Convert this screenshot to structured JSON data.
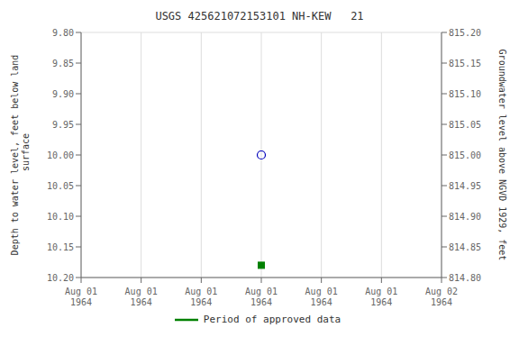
{
  "chart_data": {
    "type": "scatter",
    "title": "USGS 425621072153101 NH-KEW   21",
    "ylabel": "Depth to water level, feet below land\n surface",
    "y2label": "Groundwater level above NGVD 1929, feet",
    "categories": [
      "Aug 01\n1964",
      "Aug 01\n1964",
      "Aug 01\n1964",
      "Aug 01\n1964",
      "Aug 01\n1964",
      "Aug 01\n1964",
      "Aug 02\n1964"
    ],
    "series": [
      {
        "color": "#0000bb",
        "marker": "open_circle",
        "values": [
          null,
          null,
          null,
          10.0,
          null,
          null,
          null
        ]
      },
      {
        "name": "Period of approved data",
        "color": "#008000",
        "marker": "square",
        "values": [
          null,
          null,
          null,
          10.18,
          null,
          null,
          null
        ]
      }
    ],
    "ylim": [
      10.2,
      9.8
    ],
    "yticks": [
      {
        "value": 9.8,
        "label": "9.80"
      },
      9.85,
      {
        "value": 9.9,
        "label": "9.90"
      },
      9.95,
      {
        "value": 10,
        "label": "10.00"
      },
      10.05,
      {
        "value": 10.1,
        "label": "10.10"
      },
      10.15,
      {
        "value": 10.2,
        "label": "10.20"
      }
    ],
    "y2lim": [
      814.8,
      815.2
    ],
    "y2ticks": [
      {
        "value": 815.2,
        "label": "815.20"
      },
      815.15,
      {
        "value": 815.1,
        "label": "815.10"
      },
      815.05,
      {
        "value": 815,
        "label": "815.00"
      },
      814.95,
      {
        "value": 814.9,
        "label": "814.90"
      },
      814.85,
      {
        "value": 814.8,
        "label": "814.80"
      }
    ],
    "grid": true,
    "legend": "bottom"
  }
}
